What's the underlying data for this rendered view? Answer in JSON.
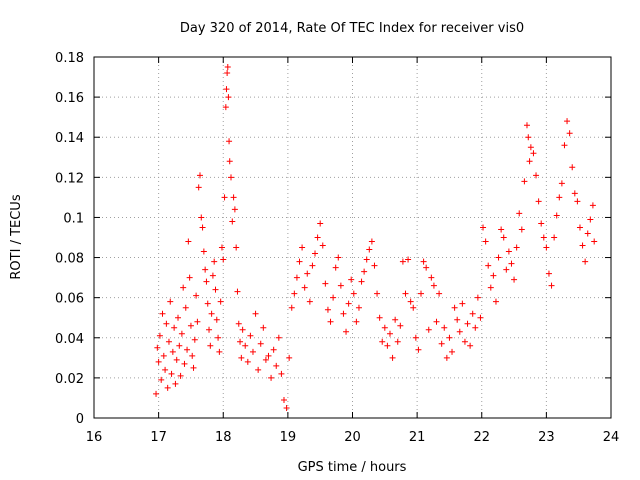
{
  "chart_data": {
    "type": "scatter",
    "title": "Day 320 of 2014, Rate Of TEC Index for receiver vis0",
    "xlabel": "GPS time / hours",
    "ylabel": "ROTI / TECUs",
    "xlim": [
      16,
      24
    ],
    "ylim": [
      0,
      0.18
    ],
    "xticks": [
      16,
      17,
      18,
      19,
      20,
      21,
      22,
      23,
      24
    ],
    "xtick_labels": [
      "16",
      "17",
      "18",
      "19",
      "20",
      "21",
      "22",
      "23",
      "24"
    ],
    "yticks": [
      0,
      0.02,
      0.04,
      0.06,
      0.08,
      0.1,
      0.12,
      0.14,
      0.16,
      0.18
    ],
    "ytick_labels": [
      "0",
      "0.02",
      "0.04",
      "0.06",
      "0.08",
      "0.1",
      "0.12",
      "0.14",
      "0.16",
      "0.18"
    ],
    "grid": true,
    "marker": "+",
    "color": "#ff0000",
    "series": [
      {
        "name": "ROTI",
        "points": [
          [
            16.96,
            0.012
          ],
          [
            16.98,
            0.035
          ],
          [
            17.0,
            0.028
          ],
          [
            17.02,
            0.041
          ],
          [
            17.04,
            0.019
          ],
          [
            17.06,
            0.052
          ],
          [
            17.08,
            0.031
          ],
          [
            17.1,
            0.024
          ],
          [
            17.12,
            0.047
          ],
          [
            17.14,
            0.015
          ],
          [
            17.16,
            0.038
          ],
          [
            17.18,
            0.058
          ],
          [
            17.2,
            0.022
          ],
          [
            17.22,
            0.033
          ],
          [
            17.24,
            0.045
          ],
          [
            17.26,
            0.017
          ],
          [
            17.28,
            0.029
          ],
          [
            17.3,
            0.05
          ],
          [
            17.32,
            0.036
          ],
          [
            17.34,
            0.021
          ],
          [
            17.36,
            0.042
          ],
          [
            17.38,
            0.065
          ],
          [
            17.4,
            0.027
          ],
          [
            17.42,
            0.055
          ],
          [
            17.44,
            0.034
          ],
          [
            17.46,
            0.088
          ],
          [
            17.48,
            0.07
          ],
          [
            17.5,
            0.046
          ],
          [
            17.52,
            0.031
          ],
          [
            17.54,
            0.025
          ],
          [
            17.56,
            0.039
          ],
          [
            17.58,
            0.061
          ],
          [
            17.6,
            0.048
          ],
          [
            17.62,
            0.115
          ],
          [
            17.64,
            0.121
          ],
          [
            17.66,
            0.1
          ],
          [
            17.68,
            0.095
          ],
          [
            17.7,
            0.083
          ],
          [
            17.72,
            0.074
          ],
          [
            17.74,
            0.068
          ],
          [
            17.76,
            0.057
          ],
          [
            17.78,
            0.044
          ],
          [
            17.8,
            0.036
          ],
          [
            17.82,
            0.052
          ],
          [
            17.84,
            0.071
          ],
          [
            17.86,
            0.078
          ],
          [
            17.88,
            0.064
          ],
          [
            17.9,
            0.049
          ],
          [
            17.92,
            0.04
          ],
          [
            17.94,
            0.033
          ],
          [
            17.96,
            0.058
          ],
          [
            17.98,
            0.085
          ],
          [
            18.0,
            0.079
          ],
          [
            18.02,
            0.11
          ],
          [
            18.04,
            0.155
          ],
          [
            18.05,
            0.164
          ],
          [
            18.06,
            0.172
          ],
          [
            18.07,
            0.175
          ],
          [
            18.08,
            0.16
          ],
          [
            18.09,
            0.138
          ],
          [
            18.1,
            0.128
          ],
          [
            18.12,
            0.12
          ],
          [
            18.14,
            0.098
          ],
          [
            18.16,
            0.11
          ],
          [
            18.18,
            0.104
          ],
          [
            18.2,
            0.085
          ],
          [
            18.22,
            0.063
          ],
          [
            18.24,
            0.047
          ],
          [
            18.26,
            0.038
          ],
          [
            18.28,
            0.03
          ],
          [
            18.3,
            0.044
          ],
          [
            18.34,
            0.036
          ],
          [
            18.38,
            0.028
          ],
          [
            18.42,
            0.041
          ],
          [
            18.46,
            0.033
          ],
          [
            18.5,
            0.052
          ],
          [
            18.54,
            0.024
          ],
          [
            18.58,
            0.037
          ],
          [
            18.62,
            0.045
          ],
          [
            18.66,
            0.029
          ],
          [
            18.7,
            0.031
          ],
          [
            18.74,
            0.02
          ],
          [
            18.78,
            0.034
          ],
          [
            18.82,
            0.026
          ],
          [
            18.86,
            0.04
          ],
          [
            18.9,
            0.022
          ],
          [
            18.94,
            0.009
          ],
          [
            18.98,
            0.005
          ],
          [
            19.02,
            0.03
          ],
          [
            19.06,
            0.055
          ],
          [
            19.1,
            0.062
          ],
          [
            19.14,
            0.07
          ],
          [
            19.18,
            0.078
          ],
          [
            19.22,
            0.085
          ],
          [
            19.26,
            0.065
          ],
          [
            19.3,
            0.072
          ],
          [
            19.34,
            0.058
          ],
          [
            19.38,
            0.076
          ],
          [
            19.42,
            0.082
          ],
          [
            19.46,
            0.09
          ],
          [
            19.5,
            0.097
          ],
          [
            19.54,
            0.086
          ],
          [
            19.58,
            0.067
          ],
          [
            19.62,
            0.054
          ],
          [
            19.66,
            0.048
          ],
          [
            19.7,
            0.06
          ],
          [
            19.74,
            0.075
          ],
          [
            19.78,
            0.08
          ],
          [
            19.82,
            0.066
          ],
          [
            19.86,
            0.052
          ],
          [
            19.9,
            0.043
          ],
          [
            19.94,
            0.057
          ],
          [
            19.98,
            0.069
          ],
          [
            20.02,
            0.062
          ],
          [
            20.06,
            0.048
          ],
          [
            20.1,
            0.055
          ],
          [
            20.14,
            0.068
          ],
          [
            20.18,
            0.073
          ],
          [
            20.22,
            0.079
          ],
          [
            20.26,
            0.084
          ],
          [
            20.3,
            0.088
          ],
          [
            20.34,
            0.076
          ],
          [
            20.38,
            0.062
          ],
          [
            20.42,
            0.05
          ],
          [
            20.46,
            0.038
          ],
          [
            20.5,
            0.045
          ],
          [
            20.54,
            0.036
          ],
          [
            20.58,
            0.042
          ],
          [
            20.62,
            0.03
          ],
          [
            20.66,
            0.049
          ],
          [
            20.7,
            0.038
          ],
          [
            20.74,
            0.046
          ],
          [
            20.78,
            0.078
          ],
          [
            20.82,
            0.062
          ],
          [
            20.86,
            0.079
          ],
          [
            20.9,
            0.058
          ],
          [
            20.94,
            0.055
          ],
          [
            20.98,
            0.04
          ],
          [
            21.02,
            0.034
          ],
          [
            21.06,
            0.062
          ],
          [
            21.1,
            0.078
          ],
          [
            21.14,
            0.075
          ],
          [
            21.18,
            0.044
          ],
          [
            21.22,
            0.07
          ],
          [
            21.26,
            0.066
          ],
          [
            21.3,
            0.048
          ],
          [
            21.34,
            0.062
          ],
          [
            21.38,
            0.037
          ],
          [
            21.42,
            0.045
          ],
          [
            21.46,
            0.03
          ],
          [
            21.5,
            0.04
          ],
          [
            21.54,
            0.033
          ],
          [
            21.58,
            0.055
          ],
          [
            21.62,
            0.049
          ],
          [
            21.66,
            0.043
          ],
          [
            21.7,
            0.057
          ],
          [
            21.74,
            0.038
          ],
          [
            21.78,
            0.047
          ],
          [
            21.82,
            0.036
          ],
          [
            21.86,
            0.052
          ],
          [
            21.9,
            0.045
          ],
          [
            21.94,
            0.06
          ],
          [
            21.98,
            0.05
          ],
          [
            22.02,
            0.095
          ],
          [
            22.06,
            0.088
          ],
          [
            22.1,
            0.076
          ],
          [
            22.14,
            0.065
          ],
          [
            22.18,
            0.071
          ],
          [
            22.22,
            0.058
          ],
          [
            22.26,
            0.08
          ],
          [
            22.3,
            0.094
          ],
          [
            22.34,
            0.09
          ],
          [
            22.38,
            0.074
          ],
          [
            22.42,
            0.083
          ],
          [
            22.46,
            0.077
          ],
          [
            22.5,
            0.069
          ],
          [
            22.54,
            0.085
          ],
          [
            22.58,
            0.102
          ],
          [
            22.62,
            0.094
          ],
          [
            22.66,
            0.118
          ],
          [
            22.7,
            0.146
          ],
          [
            22.72,
            0.14
          ],
          [
            22.74,
            0.128
          ],
          [
            22.76,
            0.135
          ],
          [
            22.8,
            0.132
          ],
          [
            22.84,
            0.121
          ],
          [
            22.88,
            0.108
          ],
          [
            22.92,
            0.097
          ],
          [
            22.96,
            0.09
          ],
          [
            23.0,
            0.085
          ],
          [
            23.04,
            0.072
          ],
          [
            23.08,
            0.066
          ],
          [
            23.12,
            0.09
          ],
          [
            23.16,
            0.101
          ],
          [
            23.2,
            0.11
          ],
          [
            23.24,
            0.117
          ],
          [
            23.28,
            0.136
          ],
          [
            23.32,
            0.148
          ],
          [
            23.36,
            0.142
          ],
          [
            23.4,
            0.125
          ],
          [
            23.44,
            0.112
          ],
          [
            23.48,
            0.108
          ],
          [
            23.52,
            0.095
          ],
          [
            23.56,
            0.086
          ],
          [
            23.6,
            0.078
          ],
          [
            23.64,
            0.092
          ],
          [
            23.68,
            0.099
          ],
          [
            23.72,
            0.106
          ],
          [
            23.74,
            0.088
          ]
        ]
      }
    ]
  }
}
